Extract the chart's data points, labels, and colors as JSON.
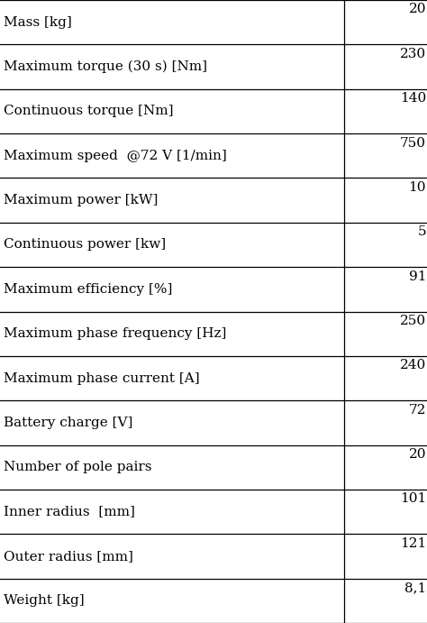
{
  "rows": [
    [
      "Mass [kg]",
      "20"
    ],
    [
      "Maximum torque (30 s) [Nm]",
      "230"
    ],
    [
      "Continuous torque [Nm]",
      "140"
    ],
    [
      "Maximum speed  @72 V [1/min]",
      "750"
    ],
    [
      "Maximum power [kW]",
      "10"
    ],
    [
      "Continuous power [kw]",
      "5"
    ],
    [
      "Maximum efficiency [%]",
      "91"
    ],
    [
      "Maximum phase frequency [Hz]",
      "250"
    ],
    [
      "Maximum phase current [A]",
      "240"
    ],
    [
      "Battery charge [V]",
      "72"
    ],
    [
      "Number of pole pairs",
      "20"
    ],
    [
      "Inner radius  [mm]",
      "101"
    ],
    [
      "Outer radius [mm]",
      "121"
    ],
    [
      "Weight [kg]",
      "8,1"
    ]
  ],
  "col_split": 0.805,
  "bg_color": "#ffffff",
  "text_color": "#000000",
  "line_color": "#000000",
  "font_size": 11.0,
  "fig_width": 4.74,
  "fig_height": 6.91
}
